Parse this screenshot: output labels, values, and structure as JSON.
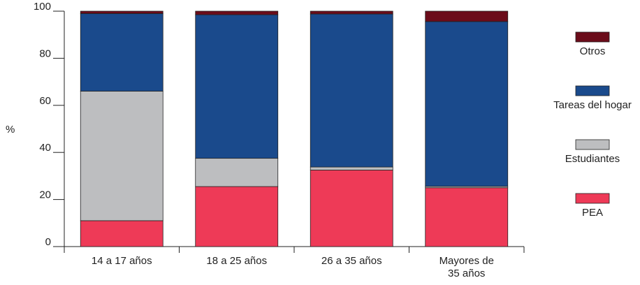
{
  "chart_data": {
    "type": "bar",
    "stacked": true,
    "ylabel": "%",
    "ylim": [
      0,
      100
    ],
    "yticks": [
      0,
      20,
      40,
      60,
      80,
      100
    ],
    "grid": false,
    "legend_position": "right",
    "categories": [
      [
        "14 a 17 años"
      ],
      [
        "18 a 25 años"
      ],
      [
        "26 a 35 años"
      ],
      [
        "Mayores de",
        "35 años"
      ]
    ],
    "series": [
      {
        "name": "PEA",
        "color": "#ee3a57",
        "values": [
          11,
          25.5,
          32.5,
          25
        ]
      },
      {
        "name": "Estudiantes",
        "color": "#bdbec0",
        "values": [
          55,
          12,
          1.3,
          0.6
        ]
      },
      {
        "name": "Tareas del hogar",
        "color": "#1a4a8c",
        "values": [
          33,
          61,
          65,
          70
        ]
      },
      {
        "name": "Otros",
        "color": "#6b0c1a",
        "values": [
          1,
          1.5,
          1.2,
          4.4
        ]
      }
    ]
  }
}
